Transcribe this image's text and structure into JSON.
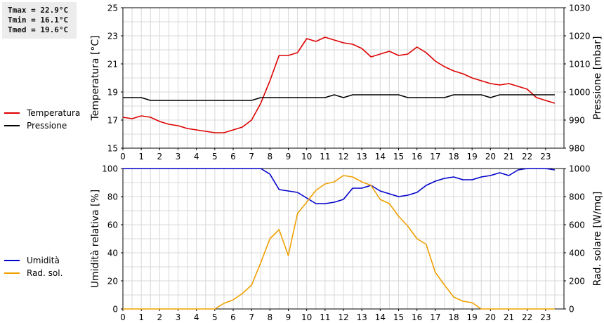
{
  "stats": {
    "tmax": "Tmax = 22.9°C",
    "tmin": "Tmin = 16.1°C",
    "tmed": "Tmed = 19.6°C"
  },
  "colors": {
    "temperature": "#dd0000",
    "pressure": "#000000",
    "humidity": "#0000cc",
    "radiation": "#f0a000",
    "grid": "#d8d8d8"
  },
  "chart_data": [
    {
      "type": "line",
      "title": "",
      "xlabel": "",
      "x_ticks": [
        "0",
        "1",
        "2",
        "3",
        "4",
        "5",
        "6",
        "7",
        "8",
        "9",
        "10",
        "11",
        "12",
        "13",
        "14",
        "15",
        "16",
        "17",
        "18",
        "19",
        "20",
        "21",
        "22",
        "23"
      ],
      "xlim": [
        0,
        24
      ],
      "ylabel_left": "Temperatura [°C]",
      "ylim_left": [
        15,
        25
      ],
      "yticks_left": [
        "15",
        "17",
        "19",
        "21",
        "23",
        "25"
      ],
      "ylabel_right": "Pressione [mbar]",
      "ylim_right": [
        980,
        1030
      ],
      "yticks_right": [
        "980",
        "990",
        "1000",
        "1010",
        "1020",
        "1030"
      ],
      "grid": true,
      "legend_position": "left",
      "series": [
        {
          "name": "Temperatura",
          "axis": "left",
          "x": [
            0,
            0.5,
            1,
            1.5,
            2,
            2.5,
            3,
            3.5,
            4,
            4.5,
            5,
            5.5,
            6,
            6.5,
            7,
            7.5,
            8,
            8.5,
            9,
            9.5,
            10,
            10.5,
            11,
            11.5,
            12,
            12.5,
            13,
            13.5,
            14,
            14.5,
            15,
            15.5,
            16,
            16.5,
            17,
            17.5,
            18,
            18.5,
            19,
            19.5,
            20,
            20.5,
            21,
            21.5,
            22,
            22.5,
            23,
            23.5
          ],
          "values": [
            17.2,
            17.1,
            17.3,
            17.2,
            16.9,
            16.7,
            16.6,
            16.4,
            16.3,
            16.2,
            16.1,
            16.1,
            16.3,
            16.5,
            17.0,
            18.2,
            19.8,
            21.6,
            21.6,
            21.8,
            22.8,
            22.6,
            22.9,
            22.7,
            22.5,
            22.4,
            22.1,
            21.5,
            21.7,
            21.9,
            21.6,
            21.7,
            22.2,
            21.8,
            21.2,
            20.8,
            20.5,
            20.3,
            20.0,
            19.8,
            19.6,
            19.5,
            19.6,
            19.4,
            19.2,
            18.6,
            18.4,
            18.2
          ]
        },
        {
          "name": "Pressione",
          "axis": "right",
          "x": [
            0,
            0.5,
            1,
            1.5,
            2,
            2.5,
            3,
            3.5,
            4,
            4.5,
            5,
            5.5,
            6,
            6.5,
            7,
            7.5,
            8,
            8.5,
            9,
            9.5,
            10,
            10.5,
            11,
            11.5,
            12,
            12.5,
            13,
            13.5,
            14,
            14.5,
            15,
            15.5,
            16,
            16.5,
            17,
            17.5,
            18,
            18.5,
            19,
            19.5,
            20,
            20.5,
            21,
            21.5,
            22,
            22.5,
            23,
            23.5
          ],
          "values": [
            998,
            998,
            998,
            997,
            997,
            997,
            997,
            997,
            997,
            997,
            997,
            997,
            997,
            997,
            997,
            998,
            998,
            998,
            998,
            998,
            998,
            998,
            998,
            999,
            998,
            999,
            999,
            999,
            999,
            999,
            999,
            998,
            998,
            998,
            998,
            998,
            999,
            999,
            999,
            999,
            998,
            999,
            999,
            999,
            999,
            999,
            999,
            999
          ]
        }
      ]
    },
    {
      "type": "line",
      "title": "",
      "xlabel": "",
      "x_ticks": [
        "0",
        "1",
        "2",
        "3",
        "4",
        "5",
        "6",
        "7",
        "8",
        "9",
        "10",
        "11",
        "12",
        "13",
        "14",
        "15",
        "16",
        "17",
        "18",
        "19",
        "20",
        "21",
        "22",
        "23"
      ],
      "xlim": [
        0,
        24
      ],
      "ylabel_left": "Umidità relativa [%]",
      "ylim_left": [
        0,
        100
      ],
      "yticks_left": [
        "0",
        "20",
        "40",
        "60",
        "80",
        "100"
      ],
      "ylabel_right": "Rad. solare [W/mq]",
      "ylim_right": [
        0,
        1000
      ],
      "yticks_right": [
        "0",
        "200",
        "400",
        "600",
        "800",
        "1000"
      ],
      "grid": true,
      "legend_position": "left",
      "series": [
        {
          "name": "Umidità",
          "axis": "left",
          "x": [
            0,
            0.5,
            1,
            1.5,
            2,
            2.5,
            3,
            3.5,
            4,
            4.5,
            5,
            5.5,
            6,
            6.5,
            7,
            7.5,
            8,
            8.5,
            9,
            9.5,
            10,
            10.5,
            11,
            11.5,
            12,
            12.5,
            13,
            13.5,
            14,
            14.5,
            15,
            15.5,
            16,
            16.5,
            17,
            17.5,
            18,
            18.5,
            19,
            19.5,
            20,
            20.5,
            21,
            21.5,
            22,
            22.5,
            23,
            23.5
          ],
          "values": [
            100,
            100,
            100,
            100,
            100,
            100,
            100,
            100,
            100,
            100,
            100,
            100,
            100,
            100,
            100,
            100,
            96,
            85,
            84,
            83,
            79,
            75,
            75,
            76,
            78,
            86,
            86,
            88,
            84,
            82,
            80,
            81,
            83,
            88,
            91,
            93,
            94,
            92,
            92,
            94,
            95,
            97,
            95,
            99,
            100,
            100,
            100,
            99
          ]
        },
        {
          "name": "Rad. sol.",
          "axis": "right",
          "x": [
            0,
            0.5,
            1,
            1.5,
            2,
            2.5,
            3,
            3.5,
            4,
            4.5,
            5,
            5.5,
            6,
            6.5,
            7,
            7.5,
            8,
            8.5,
            9,
            9.5,
            10,
            10.5,
            11,
            11.5,
            12,
            12.5,
            13,
            13.5,
            14,
            14.5,
            15,
            15.5,
            16,
            16.5,
            17,
            17.5,
            18,
            18.5,
            19,
            19.5,
            20,
            20.5,
            21,
            21.5,
            22,
            22.5,
            23,
            23.5
          ],
          "values": [
            0,
            0,
            0,
            0,
            0,
            0,
            0,
            0,
            0,
            0,
            0,
            40,
            65,
            110,
            170,
            330,
            500,
            565,
            380,
            680,
            760,
            845,
            890,
            905,
            950,
            940,
            905,
            880,
            780,
            750,
            660,
            590,
            500,
            460,
            260,
            170,
            85,
            55,
            45,
            0,
            0,
            0,
            0,
            0,
            0,
            0,
            0,
            0
          ]
        }
      ]
    }
  ]
}
